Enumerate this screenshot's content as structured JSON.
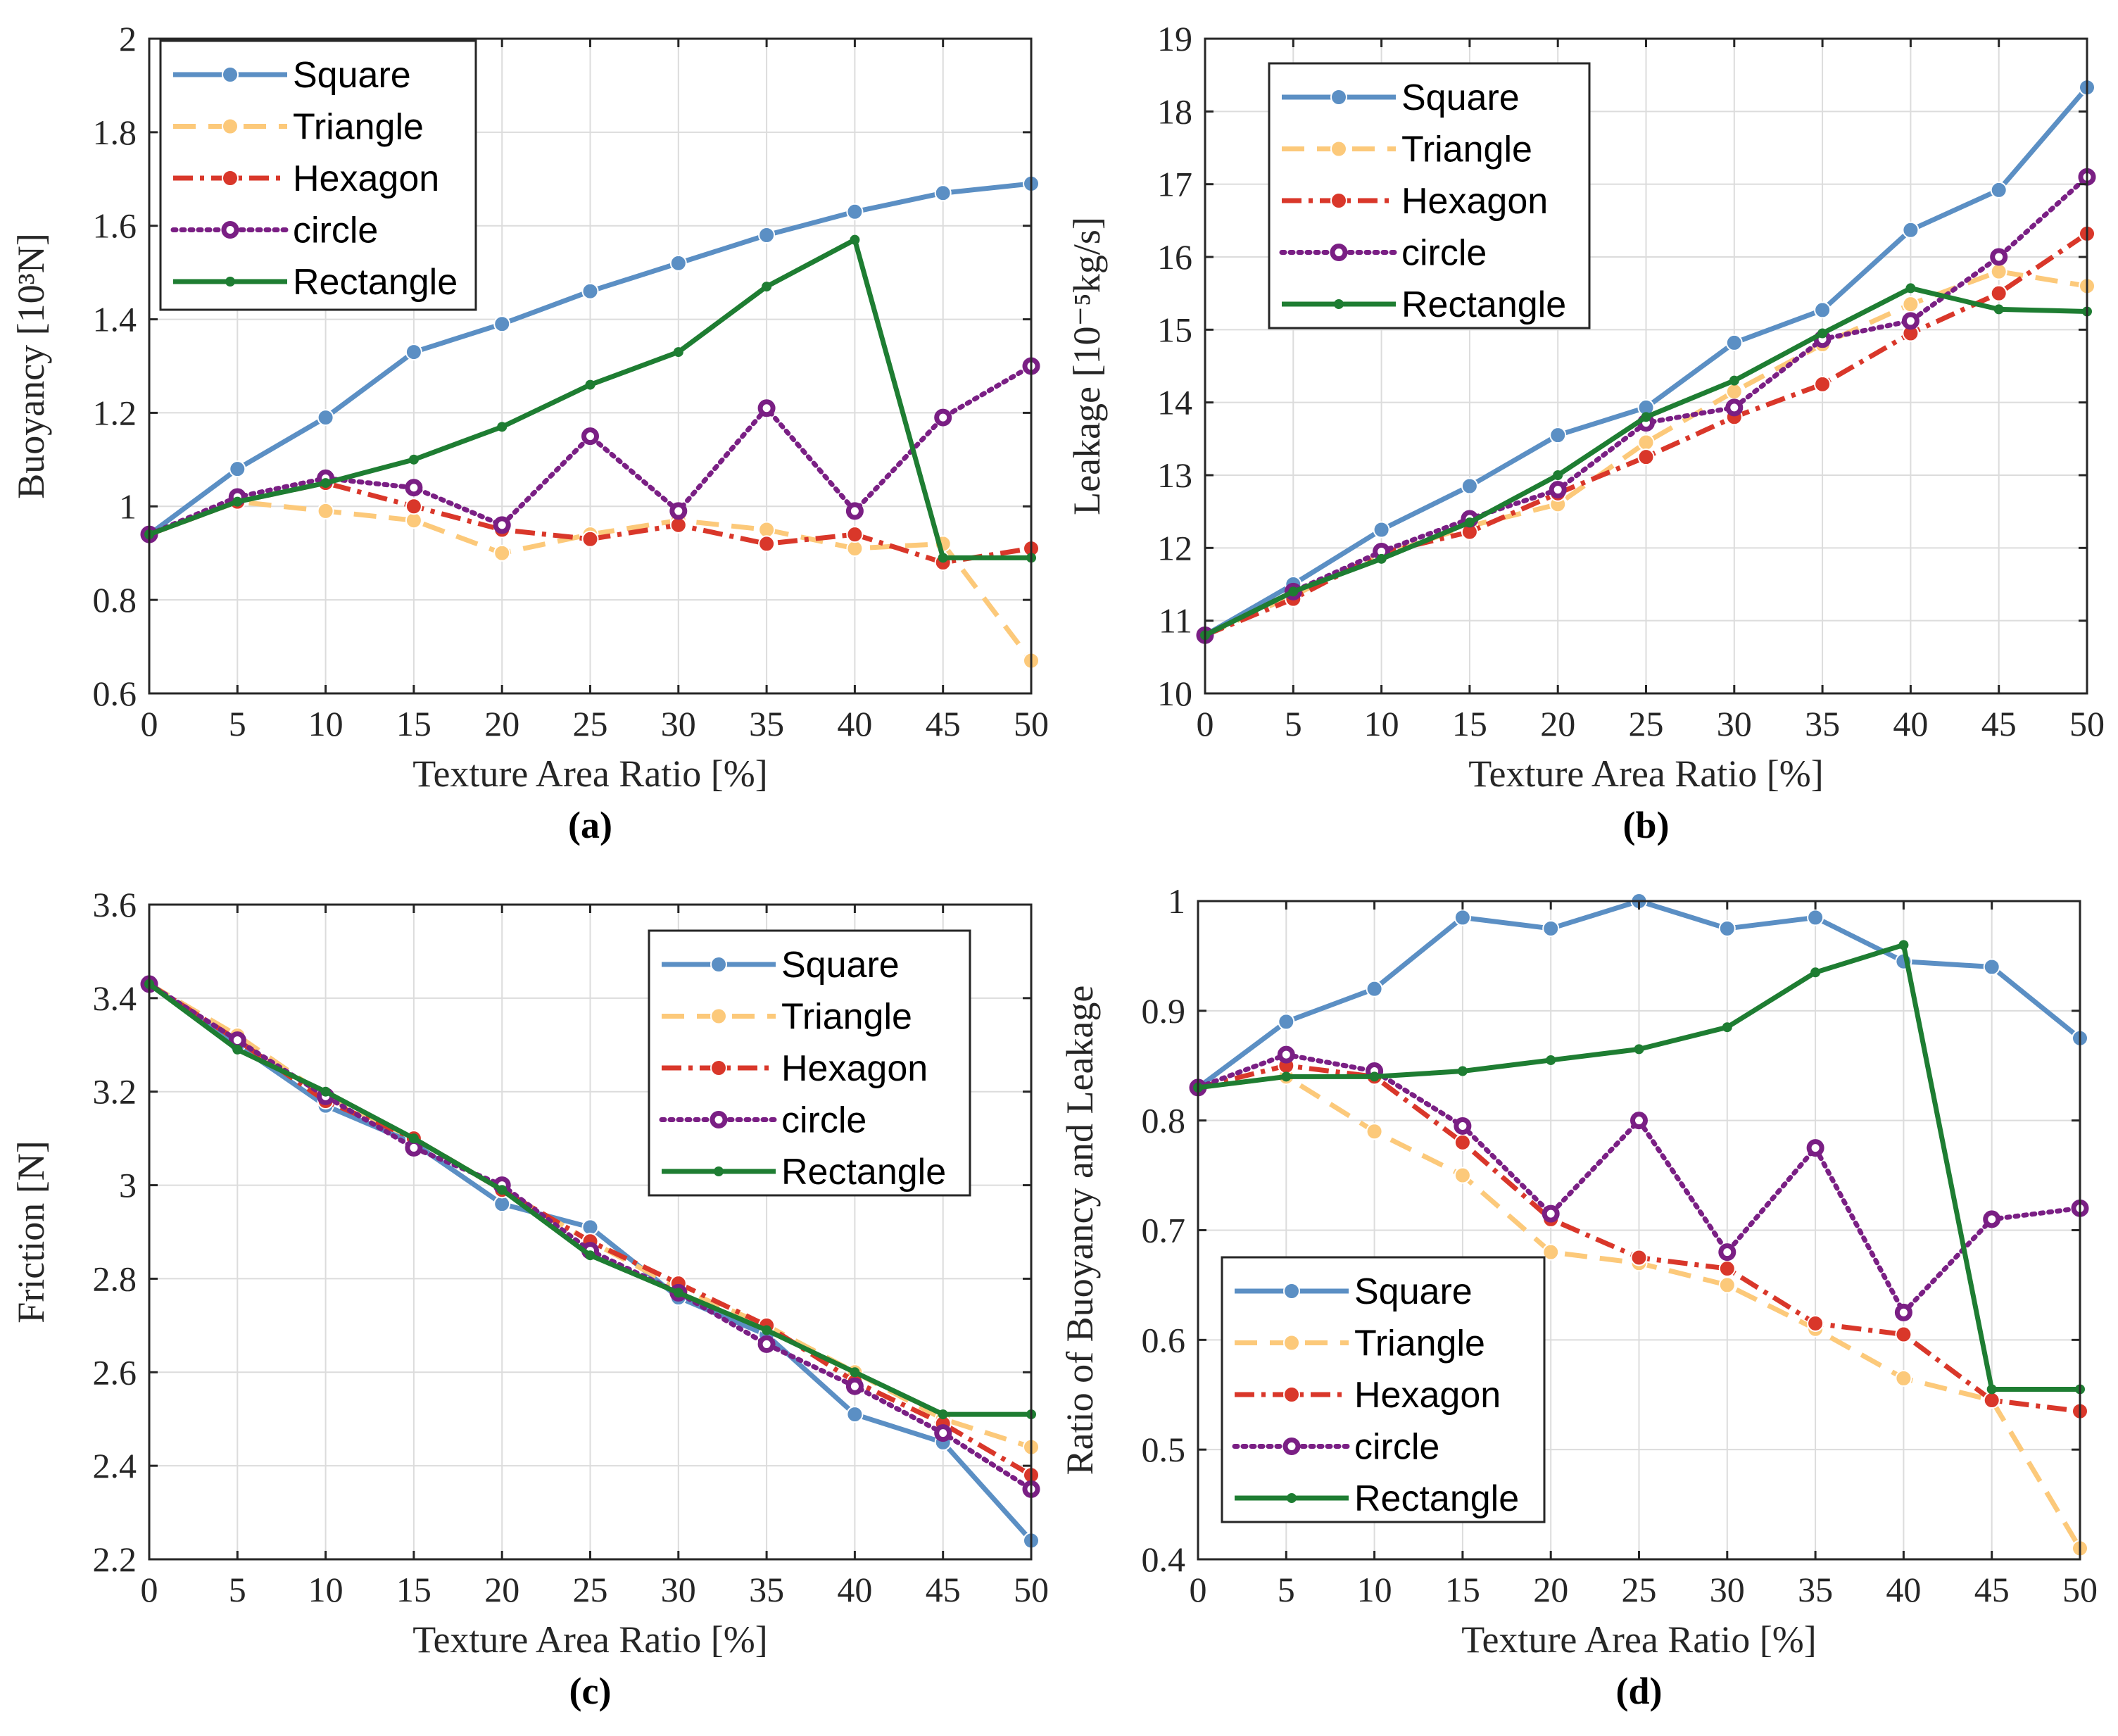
{
  "chart_data": [
    {
      "panel": "a",
      "type": "line",
      "panel_label": "(a)",
      "xlabel": "Texture Area Ratio [%]",
      "ylabel": "Buoyancy [10³N]",
      "xlim": [
        0,
        50
      ],
      "ylim": [
        0.6,
        2
      ],
      "xticks": [
        "0",
        "5",
        "10",
        "15",
        "20",
        "25",
        "30",
        "35",
        "40",
        "45",
        "50"
      ],
      "yticks": [
        "0.6",
        "0.8",
        "1",
        "1.2",
        "1.4",
        "1.6",
        "1.8",
        "2"
      ],
      "legend_position": "top-left",
      "x": [
        0,
        5,
        10,
        15,
        20,
        25,
        30,
        35,
        40,
        45,
        50
      ],
      "series": [
        {
          "name": "Square",
          "values": [
            0.94,
            1.08,
            1.19,
            1.33,
            1.39,
            1.46,
            1.52,
            1.58,
            1.63,
            1.67,
            1.69
          ]
        },
        {
          "name": "Triangle",
          "values": [
            0.94,
            1.01,
            0.99,
            0.97,
            0.9,
            0.94,
            0.97,
            0.95,
            0.91,
            0.92,
            0.67
          ]
        },
        {
          "name": "Hexagon",
          "values": [
            0.94,
            1.01,
            1.05,
            1.0,
            0.95,
            0.93,
            0.96,
            0.92,
            0.94,
            0.88,
            0.91
          ]
        },
        {
          "name": "circle",
          "values": [
            0.94,
            1.02,
            1.06,
            1.04,
            0.96,
            1.15,
            0.99,
            1.21,
            0.99,
            1.19,
            1.3
          ]
        },
        {
          "name": "Rectangle",
          "values": [
            0.94,
            1.01,
            1.05,
            1.1,
            1.17,
            1.26,
            1.33,
            1.47,
            1.57,
            0.89,
            0.89
          ]
        }
      ]
    },
    {
      "panel": "b",
      "type": "line",
      "panel_label": "(b)",
      "xlabel": "Texture Area Ratio [%]",
      "ylabel": "Leakage [10⁻⁵kg/s]",
      "xlim": [
        0,
        50
      ],
      "ylim": [
        10,
        19
      ],
      "xticks": [
        "0",
        "5",
        "10",
        "15",
        "20",
        "25",
        "30",
        "35",
        "40",
        "45",
        "50"
      ],
      "yticks": [
        "10",
        "11",
        "12",
        "13",
        "14",
        "15",
        "16",
        "17",
        "18",
        "19"
      ],
      "legend_position": "top-left",
      "x": [
        0,
        5,
        10,
        15,
        20,
        25,
        30,
        35,
        40,
        45,
        50
      ],
      "series": [
        {
          "name": "Square",
          "values": [
            10.8,
            11.5,
            12.25,
            12.85,
            13.55,
            13.93,
            14.82,
            15.27,
            16.37,
            16.92,
            18.33
          ]
        },
        {
          "name": "Triangle",
          "values": [
            10.8,
            11.35,
            11.9,
            12.3,
            12.6,
            13.45,
            14.15,
            14.8,
            15.35,
            15.8,
            15.6
          ]
        },
        {
          "name": "Hexagon",
          "values": [
            10.8,
            11.3,
            11.93,
            12.22,
            12.75,
            13.25,
            13.8,
            14.25,
            14.95,
            15.5,
            16.32
          ]
        },
        {
          "name": "circle",
          "values": [
            10.8,
            11.4,
            11.95,
            12.4,
            12.8,
            13.72,
            13.93,
            14.87,
            15.12,
            16.0,
            17.1
          ]
        },
        {
          "name": "Rectangle",
          "values": [
            10.8,
            11.4,
            11.85,
            12.35,
            13.0,
            13.8,
            14.3,
            14.95,
            15.57,
            15.28,
            15.25
          ]
        }
      ]
    },
    {
      "panel": "c",
      "type": "line",
      "panel_label": "(c)",
      "xlabel": "Texture Area Ratio [%]",
      "ylabel": "Friction [N]",
      "xlim": [
        0,
        50
      ],
      "ylim": [
        2.2,
        3.6
      ],
      "xticks": [
        "0",
        "5",
        "10",
        "15",
        "20",
        "25",
        "30",
        "35",
        "40",
        "45",
        "50"
      ],
      "yticks": [
        "2.2",
        "2.4",
        "2.6",
        "2.8",
        "3",
        "3.2",
        "3.4",
        "3.6"
      ],
      "legend_position": "top-right",
      "x": [
        0,
        5,
        10,
        15,
        20,
        25,
        30,
        35,
        40,
        45,
        50
      ],
      "series": [
        {
          "name": "Square",
          "values": [
            3.43,
            3.3,
            3.17,
            3.09,
            2.96,
            2.91,
            2.76,
            2.68,
            2.51,
            2.45,
            2.24
          ]
        },
        {
          "name": "Triangle",
          "values": [
            3.43,
            3.32,
            3.19,
            3.1,
            2.99,
            2.88,
            2.78,
            2.7,
            2.6,
            2.5,
            2.44
          ]
        },
        {
          "name": "Hexagon",
          "values": [
            3.43,
            3.31,
            3.18,
            3.1,
            2.99,
            2.88,
            2.79,
            2.7,
            2.58,
            2.49,
            2.38
          ]
        },
        {
          "name": "circle",
          "values": [
            3.43,
            3.31,
            3.19,
            3.08,
            3.0,
            2.86,
            2.77,
            2.66,
            2.57,
            2.47,
            2.35
          ]
        },
        {
          "name": "Rectangle",
          "values": [
            3.43,
            3.29,
            3.2,
            3.1,
            2.99,
            2.85,
            2.77,
            2.69,
            2.6,
            2.51,
            2.51
          ]
        }
      ]
    },
    {
      "panel": "d",
      "type": "line",
      "panel_label": "(d)",
      "xlabel": "Texture Area Ratio [%]",
      "ylabel": "Ratio of Buoyancy and Leakage",
      "xlim": [
        0,
        50
      ],
      "ylim": [
        0.4,
        1
      ],
      "xticks": [
        "0",
        "5",
        "10",
        "15",
        "20",
        "25",
        "30",
        "35",
        "40",
        "45",
        "50"
      ],
      "yticks": [
        "0.4",
        "0.5",
        "0.6",
        "0.7",
        "0.8",
        "0.9",
        "1"
      ],
      "legend_position": "bottom-left",
      "x": [
        0,
        5,
        10,
        15,
        20,
        25,
        30,
        35,
        40,
        45,
        50
      ],
      "series": [
        {
          "name": "Square",
          "values": [
            0.83,
            0.89,
            0.92,
            0.985,
            0.975,
            1.0,
            0.975,
            0.985,
            0.945,
            0.94,
            0.875
          ]
        },
        {
          "name": "Triangle",
          "values": [
            0.83,
            0.84,
            0.79,
            0.75,
            0.68,
            0.67,
            0.65,
            0.61,
            0.565,
            0.545,
            0.41
          ]
        },
        {
          "name": "Hexagon",
          "values": [
            0.83,
            0.85,
            0.84,
            0.78,
            0.71,
            0.675,
            0.665,
            0.615,
            0.605,
            0.545,
            0.535
          ]
        },
        {
          "name": "circle",
          "values": [
            0.83,
            0.86,
            0.845,
            0.795,
            0.715,
            0.8,
            0.68,
            0.775,
            0.625,
            0.71,
            0.72
          ]
        },
        {
          "name": "Rectangle",
          "values": [
            0.83,
            0.84,
            0.84,
            0.845,
            0.855,
            0.865,
            0.885,
            0.935,
            0.96,
            0.555,
            0.555
          ]
        }
      ]
    }
  ],
  "series_styles": [
    {
      "name": "Square",
      "color": "#5b8fc4",
      "dash": "",
      "marker": "filled",
      "marker_color": "#5b8fc4"
    },
    {
      "name": "Triangle",
      "color": "#fcc97a",
      "dash": "32,18",
      "marker": "filled",
      "marker_color": "#fcc97a"
    },
    {
      "name": "Hexagon",
      "color": "#d9372a",
      "dash": "28,10,6,10",
      "marker": "filled",
      "marker_color": "#d9372a"
    },
    {
      "name": "circle",
      "color": "#7a1f84",
      "dash": "4,8",
      "marker": "ring",
      "marker_color": "#7a1f84"
    },
    {
      "name": "Rectangle",
      "color": "#1e7d32",
      "dash": "",
      "marker": "small",
      "marker_color": "#1e7d32"
    }
  ]
}
